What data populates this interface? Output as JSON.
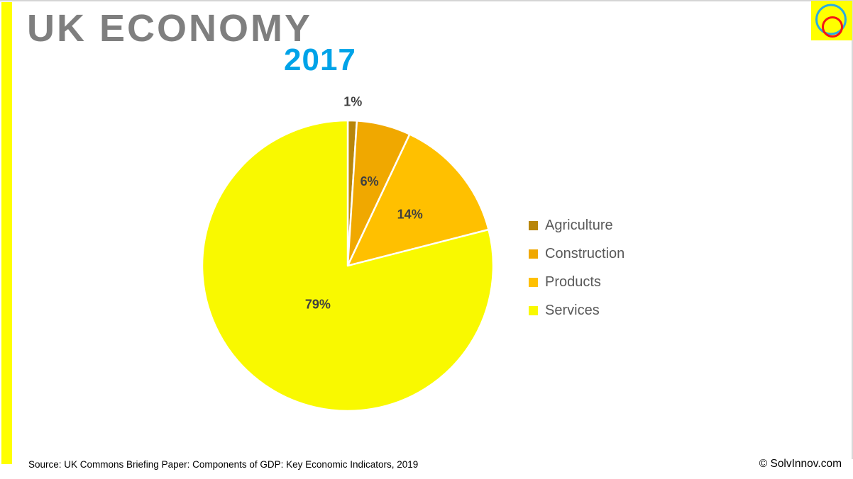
{
  "slide": {
    "title": "UK ECONOMY",
    "year": "2017",
    "source_note": "Source: UK Commons Briefing Paper: Components of GDP: Key Economic Indicators, 2019",
    "copyright": "© SolvInnov.com"
  },
  "chart_data": {
    "type": "pie",
    "title": "UK ECONOMY 2017",
    "categories": [
      "Agriculture",
      "Construction",
      "Products",
      "Services"
    ],
    "values": [
      1,
      6,
      14,
      79
    ],
    "unit": "%",
    "data_labels": [
      "1%",
      "6%",
      "14%",
      "79%"
    ],
    "slice_colors": [
      "#B8860B",
      "#F0A800",
      "#FFC000",
      "#F9F900"
    ],
    "data_label_color": "#3F3F3F",
    "legend_position": "right",
    "start_angle_deg": 0,
    "direction": "clockwise"
  },
  "colors": {
    "title_gray": "#7F7F7F",
    "year_blue": "#00A3E8",
    "accent_bar_yellow": "#FFFF00",
    "legend_text": "#595959",
    "logo_bg_yellow": "#FFFF00",
    "logo_outer_ring_blue": "#29ABE2",
    "logo_inner_ring_red": "#F51515"
  }
}
